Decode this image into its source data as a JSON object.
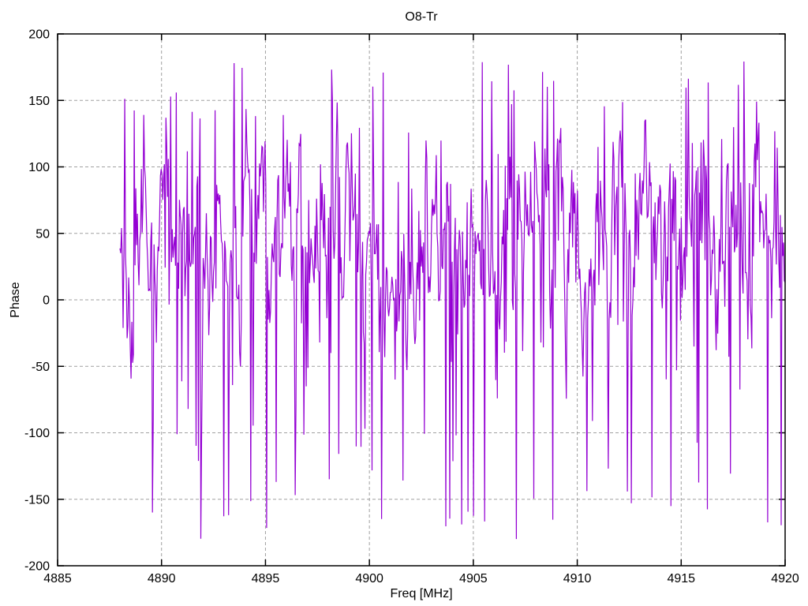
{
  "page": {
    "background": "#ffffff"
  },
  "chart_data": {
    "type": "line",
    "title": "O8-Tr",
    "xlabel": "Freq [MHz]",
    "ylabel": "Phase",
    "xlim": [
      4885,
      4920
    ],
    "ylim": [
      -200,
      200
    ],
    "xticks": [
      4885,
      4890,
      4895,
      4900,
      4905,
      4910,
      4915,
      4920
    ],
    "yticks": [
      -200,
      -150,
      -100,
      -50,
      0,
      50,
      100,
      150,
      200
    ],
    "grid": {
      "show": true,
      "style": "dashed",
      "at": "major-ticks"
    },
    "legend": {
      "show": false
    },
    "colors": {
      "line": "#9400D3",
      "grid": "#a0a0a0",
      "border": "#000000",
      "text": "#000000",
      "background": "#ffffff"
    },
    "series": [
      {
        "name": "O8-Tr",
        "style": "lines",
        "x_start": 4888.0,
        "x_end": 4920.0,
        "n_points": 840,
        "y_wrap_range": [
          -180,
          180
        ],
        "band_mean": 55,
        "band_pull": 0.3,
        "band_jitter_sd": 26,
        "down_spike_prob": 0.11,
        "down_spike_depth": [
          50,
          260
        ],
        "up_spike_prob": 0.05,
        "up_spike_height": [
          40,
          130
        ],
        "seed": 1337,
        "description": "Wrapped phase noise between -180 and +180 degrees; dense jagged single-pixel trace from ~4888 MHz to 4920 MHz, band centered near +55 with frequent spikes toward -180 and +180"
      }
    ]
  }
}
